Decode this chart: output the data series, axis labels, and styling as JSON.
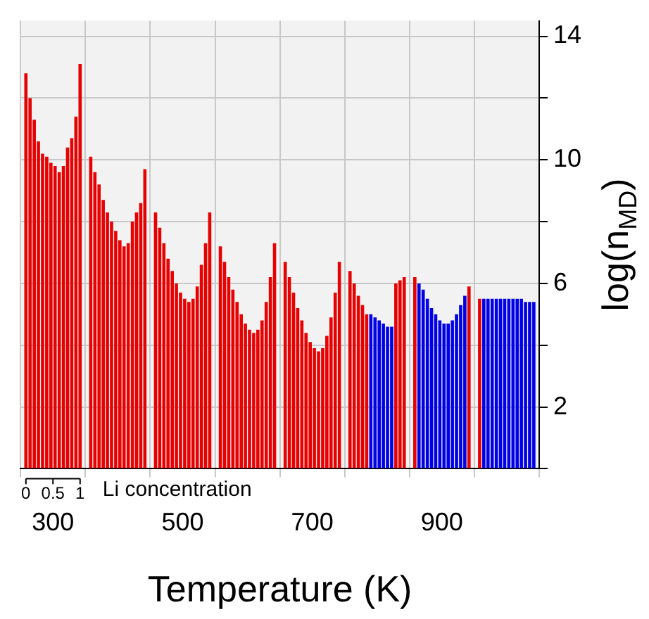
{
  "chart_data": {
    "type": "bar",
    "categories": [
      "300",
      null,
      "500",
      null,
      "700",
      null,
      "900",
      null
    ],
    "xlabel": "Temperature (K)",
    "ylabel": "log(n$_{MD}$)",
    "ylim": [
      0,
      14.5
    ],
    "yticks": [
      {
        "value": 0,
        "label": null
      },
      2,
      {
        "value": 4,
        "label": null
      },
      6,
      {
        "value": 8,
        "label": null
      },
      10,
      {
        "value": 12,
        "label": null
      },
      14
    ],
    "grid": true,
    "annotations": [
      "Li concentration",
      "0",
      "0.5",
      "1"
    ],
    "series": [
      {
        "values": [
          12.8,
          10.1,
          8.3,
          7.2,
          6.7,
          6.4,
          6.2,
          5.5
        ],
        "colors": [
          "#e60000",
          "#e60000",
          "#e60000",
          "#e60000",
          "#e60000",
          "#e60000",
          "#e60000",
          "#e60000"
        ]
      },
      {
        "values": [
          12.0,
          9.6,
          7.8,
          6.7,
          6.2,
          6.0,
          6.0,
          5.5
        ],
        "colors": [
          "#e60000",
          "#e60000",
          "#e60000",
          "#e60000",
          "#e60000",
          "#e60000",
          "#0000e6",
          "#0000e6"
        ]
      },
      {
        "values": [
          11.3,
          9.2,
          7.3,
          6.2,
          5.7,
          5.6,
          5.8,
          5.5
        ],
        "colors": [
          "#e60000",
          "#e60000",
          "#e60000",
          "#e60000",
          "#e60000",
          "#e60000",
          "#0000e6",
          "#0000e6"
        ]
      },
      {
        "values": [
          10.6,
          8.7,
          6.8,
          5.8,
          5.2,
          5.3,
          5.5,
          5.5
        ],
        "colors": [
          "#e60000",
          "#e60000",
          "#e60000",
          "#e60000",
          "#e60000",
          "#e60000",
          "#0000e6",
          "#0000e6"
        ]
      },
      {
        "values": [
          10.2,
          8.3,
          6.4,
          5.4,
          4.8,
          5.0,
          5.2,
          5.5
        ],
        "colors": [
          "#e60000",
          "#e60000",
          "#e60000",
          "#e60000",
          "#e60000",
          "#e60000",
          "#0000e6",
          "#0000e6"
        ]
      },
      {
        "values": [
          10.1,
          8.0,
          6.0,
          5.0,
          4.4,
          5.0,
          5.0,
          5.5
        ],
        "colors": [
          "#e60000",
          "#e60000",
          "#e60000",
          "#e60000",
          "#e60000",
          "#0000e6",
          "#0000e6",
          "#0000e6"
        ]
      },
      {
        "values": [
          9.9,
          7.7,
          5.7,
          4.7,
          4.1,
          4.9,
          4.8,
          5.5
        ],
        "colors": [
          "#e60000",
          "#e60000",
          "#e60000",
          "#e60000",
          "#e60000",
          "#0000e6",
          "#0000e6",
          "#0000e6"
        ]
      },
      {
        "values": [
          9.8,
          7.4,
          5.5,
          4.5,
          3.9,
          4.8,
          4.7,
          5.5
        ],
        "colors": [
          "#e60000",
          "#e60000",
          "#e60000",
          "#e60000",
          "#e60000",
          "#0000e6",
          "#0000e6",
          "#0000e6"
        ]
      },
      {
        "values": [
          9.6,
          7.2,
          5.4,
          4.4,
          3.8,
          4.7,
          4.7,
          5.5
        ],
        "colors": [
          "#e60000",
          "#e60000",
          "#e60000",
          "#e60000",
          "#e60000",
          "#0000e6",
          "#0000e6",
          "#0000e6"
        ]
      },
      {
        "values": [
          9.8,
          7.3,
          5.5,
          4.5,
          3.9,
          4.6,
          4.8,
          5.5
        ],
        "colors": [
          "#e60000",
          "#e60000",
          "#e60000",
          "#e60000",
          "#e60000",
          "#0000e6",
          "#0000e6",
          "#0000e6"
        ]
      },
      {
        "values": [
          10.4,
          8.0,
          5.9,
          4.8,
          4.3,
          4.6,
          5.0,
          5.5
        ],
        "colors": [
          "#e60000",
          "#e60000",
          "#e60000",
          "#e60000",
          "#e60000",
          "#0000e6",
          "#0000e6",
          "#0000e6"
        ]
      },
      {
        "values": [
          10.7,
          8.3,
          6.6,
          5.4,
          4.9,
          6.0,
          5.3,
          5.4
        ],
        "colors": [
          "#e60000",
          "#e60000",
          "#e60000",
          "#e60000",
          "#e60000",
          "#e60000",
          "#0000e6",
          "#0000e6"
        ]
      },
      {
        "values": [
          11.4,
          8.6,
          7.3,
          6.2,
          5.7,
          6.1,
          5.6,
          5.4
        ],
        "colors": [
          "#e60000",
          "#e60000",
          "#e60000",
          "#e60000",
          "#e60000",
          "#e60000",
          "#0000e6",
          "#0000e6"
        ]
      },
      {
        "values": [
          13.1,
          9.7,
          8.3,
          7.3,
          6.7,
          6.2,
          5.9,
          5.4
        ],
        "colors": [
          "#e60000",
          "#e60000",
          "#e60000",
          "#e60000",
          "#e60000",
          "#e60000",
          "#e60000",
          "#0000e6"
        ]
      }
    ]
  }
}
